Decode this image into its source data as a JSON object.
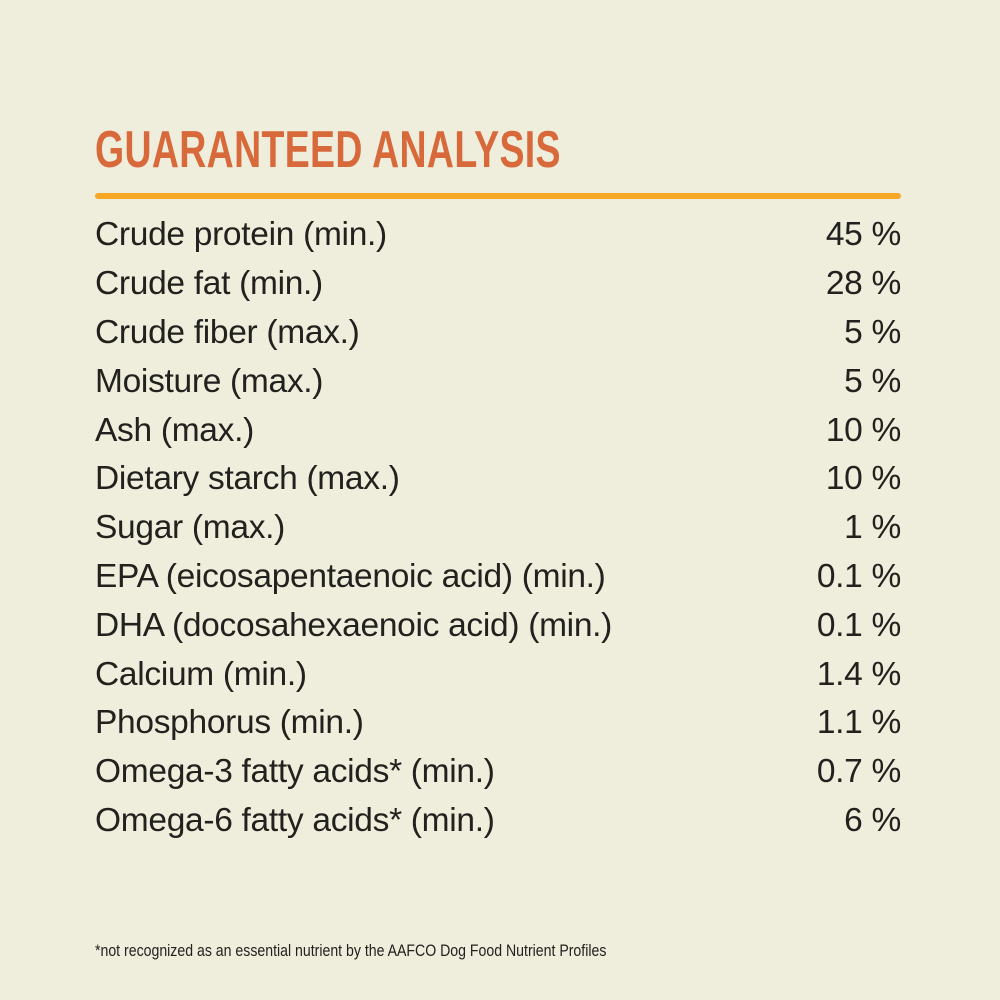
{
  "label": {
    "title": "GUARANTEED ANALYSIS",
    "rows": [
      {
        "name": "Crude protein (min.)",
        "value": "45 %"
      },
      {
        "name": "Crude fat (min.)",
        "value": "28 %"
      },
      {
        "name": "Crude fiber (max.)",
        "value": "5 %"
      },
      {
        "name": "Moisture (max.)",
        "value": "5 %"
      },
      {
        "name": "Ash (max.)",
        "value": "10 %"
      },
      {
        "name": "Dietary starch (max.)",
        "value": "10 %"
      },
      {
        "name": "Sugar (max.)",
        "value": "1 %"
      },
      {
        "name": "EPA (eicosapentaenoic acid) (min.)",
        "value": "0.1 %"
      },
      {
        "name": "DHA (docosahexaenoic acid) (min.)",
        "value": "0.1 %"
      },
      {
        "name": "Calcium (min.)",
        "value": "1.4 %"
      },
      {
        "name": "Phosphorus (min.)",
        "value": "1.1 %"
      },
      {
        "name": "Omega-3 fatty acids* (min.)",
        "value": "0.7 %"
      },
      {
        "name": "Omega-6 fatty acids* (min.)",
        "value": "6 %"
      }
    ],
    "footnote": "*not recognized as an essential nutrient by the AAFCO Dog Food Nutrient Profiles"
  },
  "colors": {
    "background": "#EFEEDC",
    "heading": "#D8693B",
    "rule": "#F6A825",
    "text": "#22211E"
  }
}
